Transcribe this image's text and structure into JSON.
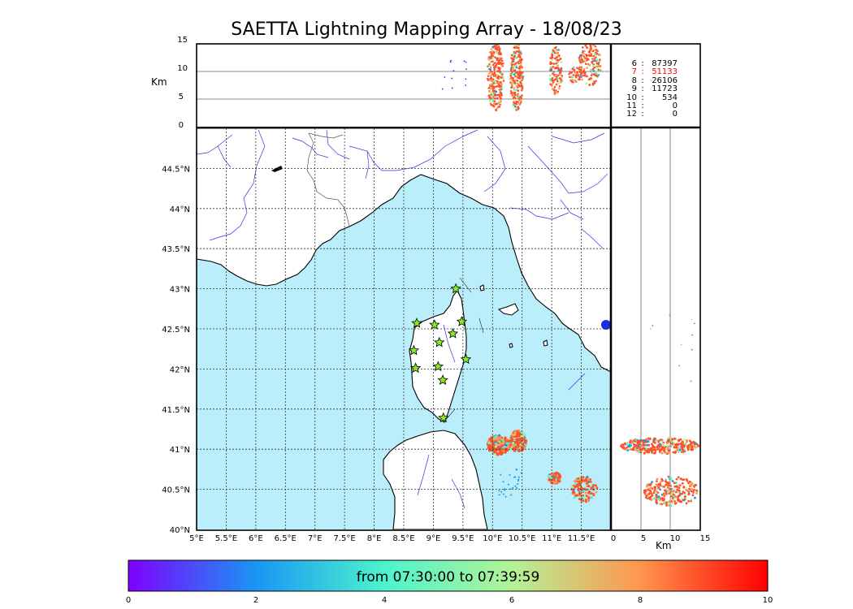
{
  "title": "SAETTA Lightning Mapping Array - 18/08/23",
  "altitude_panel": {
    "unit_label": "Km",
    "ticks": [
      "0",
      "5",
      "10",
      "15"
    ],
    "gridlines_km": [
      5,
      10
    ]
  },
  "side_panel": {
    "unit_label": "Km",
    "ticks": [
      "0",
      "5",
      "10",
      "15"
    ]
  },
  "legend": [
    {
      "level": "6",
      "count": "87397",
      "color": "#000000"
    },
    {
      "level": "7",
      "count": "51133",
      "color": "#ff0000"
    },
    {
      "level": "8",
      "count": "26106",
      "color": "#000000"
    },
    {
      "level": "9",
      "count": "11723",
      "color": "#000000"
    },
    {
      "level": "10",
      "count": "534",
      "color": "#000000"
    },
    {
      "level": "11",
      "count": "0",
      "color": "#000000"
    },
    {
      "level": "12",
      "count": "0",
      "color": "#000000"
    }
  ],
  "map": {
    "lon_range": [
      5,
      12
    ],
    "lat_range": [
      40,
      45
    ],
    "lon_ticks": [
      "5°E",
      "5.5°E",
      "6°E",
      "6.5°E",
      "7°E",
      "7.5°E",
      "8°E",
      "8.5°E",
      "9°E",
      "9.5°E",
      "10°E",
      "10.5°E",
      "11°E",
      "11.5°E"
    ],
    "lat_ticks": [
      "40°N",
      "40.5°N",
      "41°N",
      "41.5°N",
      "42°N",
      "42.5°N",
      "43°N",
      "43.5°N",
      "44°N",
      "44.5°N"
    ],
    "sea_color": "#b9eefa",
    "land_color": "#ffffff",
    "river_color": "#3333dd",
    "station_color": "#88ee22",
    "stations": [
      [
        9.38,
        43.0
      ],
      [
        8.72,
        42.57
      ],
      [
        9.02,
        42.55
      ],
      [
        9.48,
        42.59
      ],
      [
        9.33,
        42.44
      ],
      [
        9.1,
        42.33
      ],
      [
        8.67,
        42.23
      ],
      [
        9.55,
        42.12
      ],
      [
        8.7,
        42.01
      ],
      [
        9.08,
        42.03
      ],
      [
        9.16,
        41.86
      ],
      [
        9.17,
        41.39
      ]
    ]
  },
  "colorbar": {
    "label": "from 07:30:00 to 07:39:59",
    "ticks": [
      "0",
      "2",
      "4",
      "6",
      "8",
      "10"
    ],
    "colors": [
      "#7f00ff",
      "#1996f3",
      "#4df3ce",
      "#b2f396",
      "#ff964f",
      "#ff0000"
    ]
  }
}
